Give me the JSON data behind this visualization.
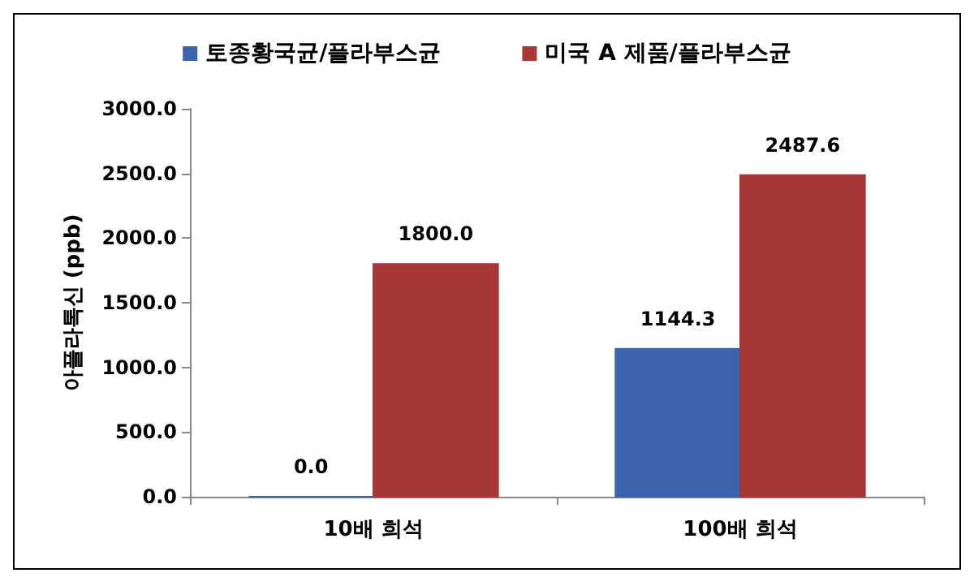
{
  "chart_data": {
    "type": "bar",
    "ylabel": "아플라톡신 (ppb)",
    "categories": [
      "10배 희석",
      "100배 희석"
    ],
    "series": [
      {
        "name": "토종황국균/플라부스균",
        "color": "#3b64ad",
        "values": [
          0.0,
          1144.3
        ],
        "value_labels": [
          "0.0",
          "1144.3"
        ]
      },
      {
        "name": "미국 A 제품/플라부스균",
        "color": "#a83838",
        "values": [
          1800.0,
          2487.6
        ],
        "value_labels": [
          "1800.0",
          "2487.6"
        ]
      }
    ],
    "ylim": [
      0,
      3000
    ],
    "yticks": [
      {
        "value": 0,
        "label": "0.0"
      },
      {
        "value": 500,
        "label": "500.0"
      },
      {
        "value": 1000,
        "label": "1000.0"
      },
      {
        "value": 1500,
        "label": "1500.0"
      },
      {
        "value": 2000,
        "label": "2000.0"
      },
      {
        "value": 2500,
        "label": "2500.0"
      },
      {
        "value": 3000,
        "label": "3000.0"
      }
    ],
    "grid": false,
    "legend": "top"
  }
}
